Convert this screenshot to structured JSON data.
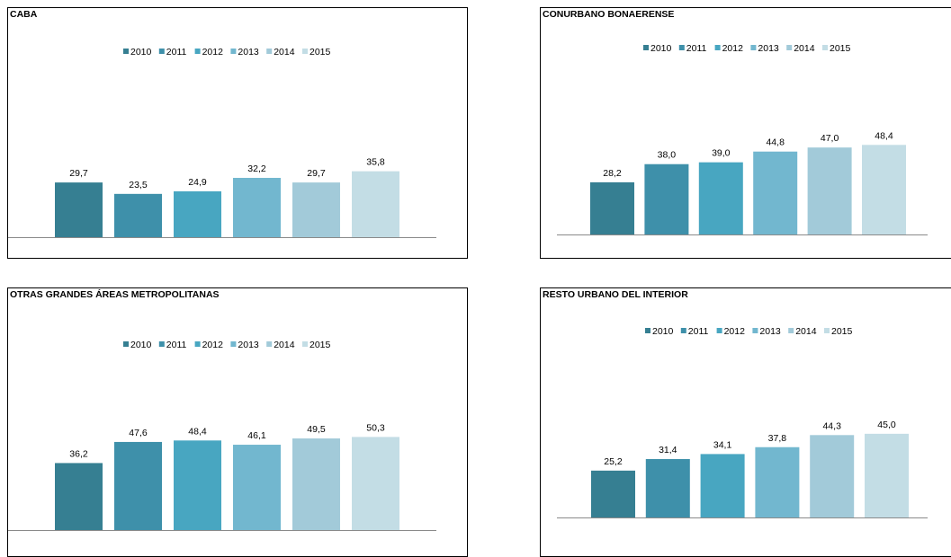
{
  "series_colors": [
    "#367f92",
    "#3e90aa",
    "#48a6c1",
    "#72b7cf",
    "#a2cad9",
    "#c3dde5"
  ],
  "chart_data": [
    {
      "type": "bar",
      "title": "CABA",
      "categories": [
        "2010",
        "2011",
        "2012",
        "2013",
        "2014",
        "2015"
      ],
      "values": [
        29.7,
        23.5,
        24.9,
        32.2,
        29.7,
        35.8
      ],
      "value_labels": [
        "29,7",
        "23,5",
        "24,9",
        "32,2",
        "29,7",
        "35,8"
      ],
      "legend": [
        "2010",
        "2011",
        "2012",
        "2013",
        "2014",
        "2015"
      ],
      "legend_position": "top",
      "ylim": [
        0,
        60
      ],
      "grid": false
    },
    {
      "type": "bar",
      "title": "CONURBANO BONAERENSE",
      "categories": [
        "2010",
        "2011",
        "2012",
        "2013",
        "2014",
        "2015"
      ],
      "values": [
        28.2,
        38.0,
        39.0,
        44.8,
        47.0,
        48.4
      ],
      "value_labels": [
        "28,2",
        "38,0",
        "39,0",
        "44,8",
        "47,0",
        "48,4"
      ],
      "legend": [
        "2010",
        "2011",
        "2012",
        "2013",
        "2014",
        "2015"
      ],
      "legend_position": "top",
      "ylim": [
        0,
        60
      ],
      "grid": false
    },
    {
      "type": "bar",
      "title": "OTRAS GRANDES ÁREAS METROPOLITANAS",
      "categories": [
        "2010",
        "2011",
        "2012",
        "2013",
        "2014",
        "2015"
      ],
      "values": [
        36.2,
        47.6,
        48.4,
        46.1,
        49.5,
        50.3
      ],
      "value_labels": [
        "36,2",
        "47,6",
        "48,4",
        "46,1",
        "49,5",
        "50,3"
      ],
      "legend": [
        "2010",
        "2011",
        "2012",
        "2013",
        "2014",
        "2015"
      ],
      "legend_position": "top",
      "ylim": [
        0,
        60
      ],
      "grid": false
    },
    {
      "type": "bar",
      "title": "RESTO URBANO DEL INTERIOR",
      "categories": [
        "2010",
        "2011",
        "2012",
        "2013",
        "2014",
        "2015"
      ],
      "values": [
        25.2,
        31.4,
        34.1,
        37.8,
        44.3,
        45.0
      ],
      "value_labels": [
        "25,2",
        "31,4",
        "34,1",
        "37,8",
        "44,3",
        "45,0"
      ],
      "legend": [
        "2010",
        "2011",
        "2012",
        "2013",
        "2014",
        "2015"
      ],
      "legend_position": "top",
      "ylim": [
        0,
        60
      ],
      "grid": false
    }
  ]
}
